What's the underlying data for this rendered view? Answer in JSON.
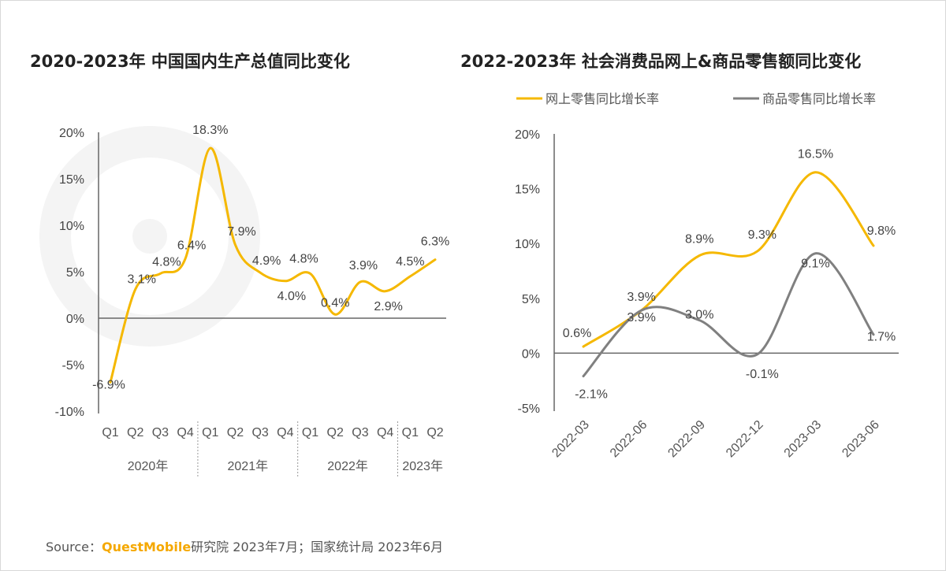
{
  "source": {
    "prefix": "Source：",
    "brand": "QuestMobile",
    "rest": "研究院 2023年7月；国家统计局 2023年6月"
  },
  "watermark": "QUEST MOBILE",
  "colors": {
    "online": "#f5b800",
    "goods": "#808080",
    "axis": "#666666",
    "text": "#444444"
  },
  "chart_data": [
    {
      "type": "line",
      "title": "2020-2023年 中国国内生产总值同比变化",
      "categories": [
        "Q1",
        "Q2",
        "Q3",
        "Q4",
        "Q1",
        "Q2",
        "Q3",
        "Q4",
        "Q1",
        "Q2",
        "Q3",
        "Q4",
        "Q1",
        "Q2"
      ],
      "groups": [
        {
          "label": "2020年",
          "count": 4
        },
        {
          "label": "2021年",
          "count": 4
        },
        {
          "label": "2022年",
          "count": 4
        },
        {
          "label": "2023年",
          "count": 2
        }
      ],
      "series": [
        {
          "values": [
            -6.9,
            3.1,
            4.8,
            6.4,
            18.3,
            7.9,
            4.9,
            4.0,
            4.8,
            0.4,
            3.9,
            2.9,
            4.5,
            6.3
          ],
          "color": "#f5b800"
        }
      ],
      "data_labels": [
        "-6.9%",
        "3.1%",
        "4.8%",
        "6.4%",
        "18.3%",
        "7.9%",
        "4.9%",
        "4.0%",
        "4.8%",
        "0.4%",
        "3.9%",
        "2.9%",
        "4.5%",
        "6.3%"
      ],
      "ylim": [
        -10,
        20
      ],
      "yticks": [
        "-10%",
        "-5%",
        "0%",
        "5%",
        "10%",
        "15%",
        "20%"
      ],
      "grid": false
    },
    {
      "type": "line",
      "title": "2022-2023年 社会消费品网上&商品零售额同比变化",
      "categories": [
        "2022-03",
        "2022-06",
        "2022-09",
        "2022-12",
        "2023-03",
        "2023-06"
      ],
      "series": [
        {
          "name": "网上零售同比增长率",
          "values": [
            0.6,
            3.9,
            8.9,
            9.3,
            16.5,
            9.8
          ],
          "color": "#f5b800",
          "labels": [
            "0.6%",
            "3.9%",
            "8.9%",
            "9.3%",
            "16.5%",
            "9.8%"
          ]
        },
        {
          "name": "商品零售同比增长率",
          "values": [
            -2.1,
            3.9,
            3.0,
            -0.1,
            9.1,
            1.7
          ],
          "color": "#808080",
          "labels": [
            "-2.1%",
            "3.9%",
            "3.0%",
            "-0.1%",
            "9.1%",
            "1.7%"
          ]
        }
      ],
      "ylim": [
        -5,
        20
      ],
      "yticks": [
        "-5%",
        "0%",
        "5%",
        "10%",
        "15%",
        "20%"
      ],
      "legend": "top",
      "grid": false
    }
  ]
}
